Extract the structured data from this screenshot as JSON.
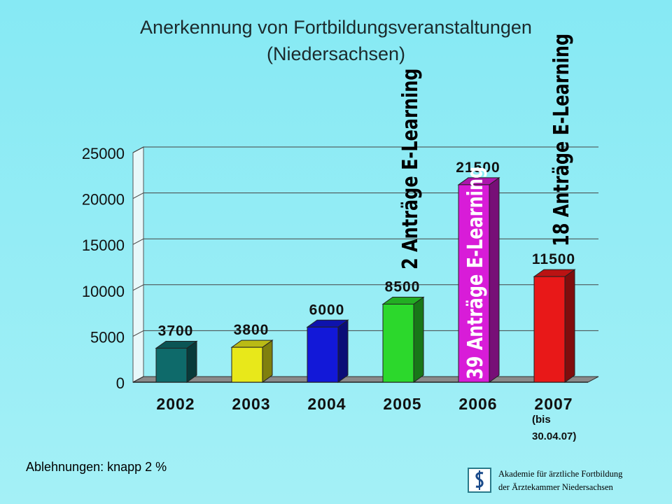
{
  "title_line1": "Anerkennung von Fortbildungsveranstaltungen",
  "title_line2": "(Niedersachsen)",
  "note_rejections": "Ablehnungen: knapp 2 %",
  "footer": {
    "line1": "Akademie für ärztliche Fortbildung",
    "line2": "der Ärztekammer Niedersachsen"
  },
  "chart_data": {
    "type": "bar",
    "categories": [
      "2002",
      "2003",
      "2004",
      "2005",
      "2006",
      "2007"
    ],
    "values": [
      3700,
      3800,
      6000,
      8500,
      21500,
      11500
    ],
    "data_labels": [
      "3700",
      "3800",
      "6000",
      "8500",
      "21500",
      "11500"
    ],
    "colors": [
      "#0e6a6a",
      "#e8e81a",
      "#1218d8",
      "#2cd82c",
      "#d81cd8",
      "#e81818"
    ],
    "category_note": {
      "category": "2007",
      "line1": "(bis",
      "line2": "30.04.07)"
    },
    "ylim": [
      0,
      25000
    ],
    "yticks": [
      0,
      5000,
      10000,
      15000,
      20000,
      25000
    ],
    "grid": true,
    "annotations": [
      {
        "category": "2006",
        "text": "39 Anträge E-Learning",
        "placement": "inside-bar"
      },
      {
        "category": "2006",
        "text": "2 Anträge E-Learning",
        "placement": "left-of-bar"
      },
      {
        "category": "2007",
        "text": "18 Anträge E-Learning",
        "placement": "above-bar"
      }
    ]
  }
}
